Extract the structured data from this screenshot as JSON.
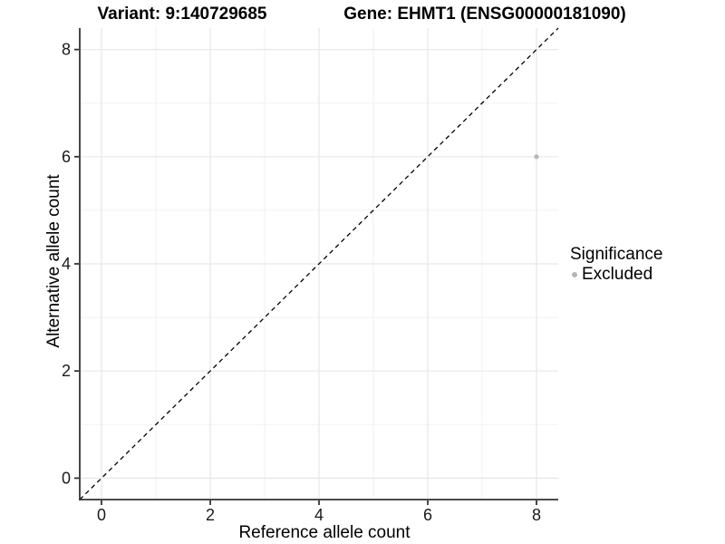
{
  "chart_data": {
    "type": "scatter",
    "title_left": "Variant: 9:140729685",
    "title_right": "Gene: EHMT1 (ENSG00000181090)",
    "xlabel": "Reference allele count",
    "ylabel": "Alternative allele count",
    "xlim": [
      -0.4,
      8.4
    ],
    "ylim": [
      -0.4,
      8.4
    ],
    "x_ticks": [
      0,
      2,
      4,
      6,
      8
    ],
    "y_ticks": [
      0,
      2,
      4,
      6,
      8
    ],
    "x_minor_ticks": [
      1,
      3,
      5,
      7
    ],
    "y_minor_ticks": [
      1,
      3,
      5,
      7
    ],
    "grid": true,
    "legend": {
      "title": "Significance",
      "position": "right",
      "items": [
        {
          "label": "Excluded",
          "color": "#b5b5b5",
          "marker": "circle"
        }
      ]
    },
    "series": [
      {
        "name": "Excluded",
        "color": "#b5b5b5",
        "points": [
          {
            "x": 8,
            "y": 6
          }
        ]
      }
    ],
    "reference_line": {
      "slope": 1,
      "intercept": 0,
      "style": "dashed",
      "color": "#000000"
    },
    "colors": {
      "grid_major": "#e7e7e7",
      "grid_minor": "#f2f2f2",
      "axis": "#333333",
      "background": "#ffffff"
    }
  }
}
